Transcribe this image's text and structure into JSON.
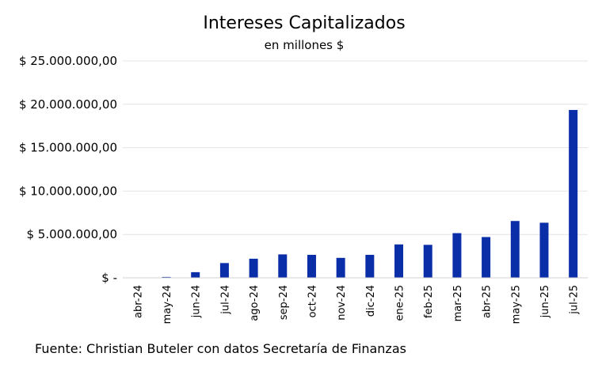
{
  "chart_data": {
    "type": "bar",
    "title": "Intereses Capitalizados",
    "subtitle": "en millones $",
    "source": "Fuente: Christian Buteler con datos Secretaría de Finanzas",
    "categories": [
      "abr-24",
      "may-24",
      "jun-24",
      "jul-24",
      "ago-24",
      "sep-24",
      "oct-24",
      "nov-24",
      "dic-24",
      "ene-25",
      "feb-25",
      "mar-25",
      "abr-25",
      "may-25",
      "jun-25",
      "jul-25"
    ],
    "values": [
      10000,
      100000,
      650000,
      1700000,
      2200000,
      2700000,
      2650000,
      2300000,
      2650000,
      3850000,
      3800000,
      5150000,
      4700000,
      6550000,
      6350000,
      19350000
    ],
    "ylim": [
      0,
      25000000
    ],
    "yticks": [
      0,
      5000000,
      10000000,
      15000000,
      20000000,
      25000000
    ],
    "ytick_labels": [
      "$ -",
      "$ 5.000.000,00",
      "$ 10.000.000,00",
      "$ 15.000.000,00",
      "$ 20.000.000,00",
      "$ 25.000.000,00"
    ],
    "grid": true,
    "bar_color": "#0a2ea8"
  }
}
